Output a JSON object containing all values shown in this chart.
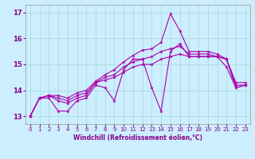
{
  "title": "",
  "xlabel": "Windchill (Refroidissement éolien,°C)",
  "background_color": "#cceeff",
  "grid_color": "#aadddd",
  "line_color": "#aa00aa",
  "xlim": [
    -0.5,
    23.5
  ],
  "ylim": [
    12.7,
    17.3
  ],
  "yticks": [
    13,
    14,
    15,
    16,
    17
  ],
  "xticks": [
    0,
    1,
    2,
    3,
    4,
    5,
    6,
    7,
    8,
    9,
    10,
    11,
    12,
    13,
    14,
    15,
    16,
    17,
    18,
    19,
    20,
    21,
    22,
    23
  ],
  "series": [
    [
      13.0,
      13.7,
      13.7,
      13.2,
      13.2,
      13.6,
      13.7,
      14.2,
      14.1,
      13.6,
      14.8,
      15.2,
      15.2,
      14.1,
      13.2,
      15.5,
      15.8,
      15.3,
      15.3,
      15.3,
      15.3,
      14.9,
      14.1,
      14.2
    ],
    [
      13.0,
      13.7,
      13.8,
      13.6,
      13.5,
      13.7,
      13.8,
      14.3,
      14.4,
      14.5,
      14.7,
      14.9,
      15.0,
      15.0,
      15.2,
      15.3,
      15.4,
      15.3,
      15.3,
      15.3,
      15.3,
      15.2,
      14.1,
      14.2
    ],
    [
      13.0,
      13.7,
      13.8,
      13.7,
      13.6,
      13.8,
      13.9,
      14.3,
      14.5,
      14.6,
      14.9,
      15.1,
      15.2,
      15.3,
      15.5,
      15.6,
      15.7,
      15.4,
      15.4,
      15.4,
      15.3,
      15.2,
      14.2,
      14.2
    ],
    [
      13.0,
      13.7,
      13.8,
      13.8,
      13.7,
      13.9,
      14.0,
      14.35,
      14.6,
      14.8,
      15.1,
      15.35,
      15.55,
      15.6,
      15.85,
      16.95,
      16.3,
      15.5,
      15.5,
      15.5,
      15.4,
      15.2,
      14.3,
      14.3
    ]
  ]
}
